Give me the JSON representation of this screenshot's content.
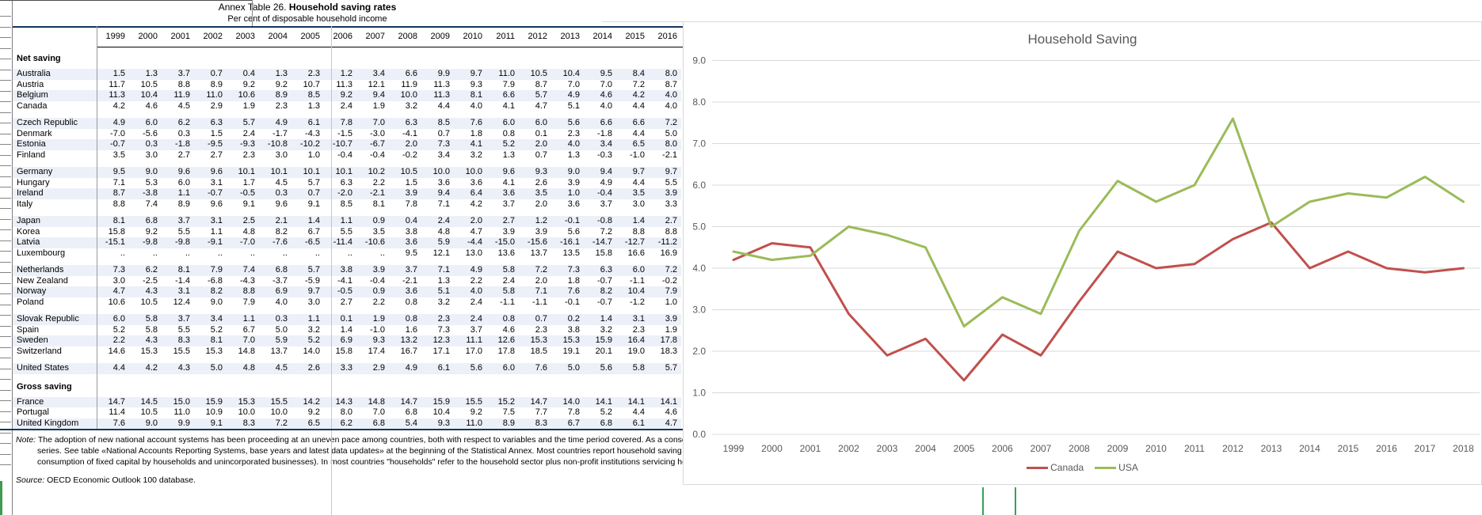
{
  "table": {
    "title_prefix": "Annex Table 26.",
    "title_bold": "Household saving rates",
    "subtitle": "Per cent of disposable household income",
    "years": [
      "1999",
      "2000",
      "2001",
      "2002",
      "2003",
      "2004",
      "2005",
      "2006",
      "2007",
      "2008",
      "2009",
      "2010",
      "2011",
      "2012",
      "2013",
      "2014",
      "2015",
      "2016"
    ],
    "sections": [
      {
        "label": "Net saving",
        "groups": [
          [
            {
              "country": "Australia",
              "values": [
                "1.5",
                "1.3",
                "3.7",
                "0.7",
                "0.4",
                "1.3",
                "2.3",
                "1.2",
                "3.4",
                "6.6",
                "9.9",
                "9.7",
                "11.0",
                "10.5",
                "10.4",
                "9.5",
                "8.4",
                "8.0"
              ]
            },
            {
              "country": "Austria",
              "values": [
                "11.7",
                "10.5",
                "8.8",
                "8.9",
                "9.2",
                "9.2",
                "10.7",
                "11.3",
                "12.1",
                "11.9",
                "11.3",
                "9.3",
                "7.9",
                "8.7",
                "7.0",
                "7.0",
                "7.2",
                "8.7"
              ]
            },
            {
              "country": "Belgium",
              "values": [
                "11.3",
                "10.4",
                "11.9",
                "11.0",
                "10.6",
                "8.9",
                "8.5",
                "9.2",
                "9.4",
                "10.0",
                "11.3",
                "8.1",
                "6.6",
                "5.7",
                "4.9",
                "4.6",
                "4.2",
                "4.0"
              ]
            },
            {
              "country": "Canada",
              "values": [
                "4.2",
                "4.6",
                "4.5",
                "2.9",
                "1.9",
                "2.3",
                "1.3",
                "2.4",
                "1.9",
                "3.2",
                "4.4",
                "4.0",
                "4.1",
                "4.7",
                "5.1",
                "4.0",
                "4.4",
                "4.0"
              ]
            }
          ],
          [
            {
              "country": "Czech Republic",
              "values": [
                "4.9",
                "6.0",
                "6.2",
                "6.3",
                "5.7",
                "4.9",
                "6.1",
                "7.8",
                "7.0",
                "6.3",
                "8.5",
                "7.6",
                "6.0",
                "6.0",
                "5.6",
                "6.6",
                "6.6",
                "7.2"
              ]
            },
            {
              "country": "Denmark",
              "values": [
                "-7.0",
                "-5.6",
                "0.3",
                "1.5",
                "2.4",
                "-1.7",
                "-4.3",
                "-1.5",
                "-3.0",
                "-4.1",
                "0.7",
                "1.8",
                "0.8",
                "0.1",
                "2.3",
                "-1.8",
                "4.4",
                "5.0"
              ]
            },
            {
              "country": "Estonia",
              "values": [
                "-0.7",
                "0.3",
                "-1.8",
                "-9.5",
                "-9.3",
                "-10.8",
                "-10.2",
                "-10.7",
                "-6.7",
                "2.0",
                "7.3",
                "4.1",
                "5.2",
                "2.0",
                "4.0",
                "3.4",
                "6.5",
                "8.0"
              ]
            },
            {
              "country": "Finland",
              "values": [
                "3.5",
                "3.0",
                "2.7",
                "2.7",
                "2.3",
                "3.0",
                "1.0",
                "-0.4",
                "-0.4",
                "-0.2",
                "3.4",
                "3.2",
                "1.3",
                "0.7",
                "1.3",
                "-0.3",
                "-1.0",
                "-2.1"
              ]
            }
          ],
          [
            {
              "country": "Germany",
              "values": [
                "9.5",
                "9.0",
                "9.6",
                "9.6",
                "10.1",
                "10.1",
                "10.1",
                "10.1",
                "10.2",
                "10.5",
                "10.0",
                "10.0",
                "9.6",
                "9.3",
                "9.0",
                "9.4",
                "9.7",
                "9.7"
              ]
            },
            {
              "country": "Hungary",
              "values": [
                "7.1",
                "5.3",
                "6.0",
                "3.1",
                "1.7",
                "4.5",
                "5.7",
                "6.3",
                "2.2",
                "1.5",
                "3.6",
                "3.6",
                "4.1",
                "2.6",
                "3.9",
                "4.9",
                "4.4",
                "5.5"
              ]
            },
            {
              "country": "Ireland",
              "values": [
                "8.7",
                "-3.8",
                "1.1",
                "-0.7",
                "-0.5",
                "0.3",
                "0.7",
                "-2.0",
                "-2.1",
                "3.9",
                "9.4",
                "6.4",
                "3.6",
                "3.5",
                "1.0",
                "-0.4",
                "3.5",
                "3.9"
              ]
            },
            {
              "country": "Italy",
              "values": [
                "8.8",
                "7.4",
                "8.9",
                "9.6",
                "9.1",
                "9.6",
                "9.1",
                "8.5",
                "8.1",
                "7.8",
                "7.1",
                "4.2",
                "3.7",
                "2.0",
                "3.6",
                "3.7",
                "3.0",
                "3.3"
              ]
            }
          ],
          [
            {
              "country": "Japan",
              "values": [
                "8.1",
                "6.8",
                "3.7",
                "3.1",
                "2.5",
                "2.1",
                "1.4",
                "1.1",
                "0.9",
                "0.4",
                "2.4",
                "2.0",
                "2.7",
                "1.2",
                "-0.1",
                "-0.8",
                "1.4",
                "2.7"
              ]
            },
            {
              "country": "Korea",
              "values": [
                "15.8",
                "9.2",
                "5.5",
                "1.1",
                "4.8",
                "8.2",
                "6.7",
                "5.5",
                "3.5",
                "3.8",
                "4.8",
                "4.7",
                "3.9",
                "3.9",
                "5.6",
                "7.2",
                "8.8",
                "8.8"
              ]
            },
            {
              "country": "Latvia",
              "values": [
                "-15.1",
                "-9.8",
                "-9.8",
                "-9.1",
                "-7.0",
                "-7.6",
                "-6.5",
                "-11.4",
                "-10.6",
                "3.6",
                "5.9",
                "-4.4",
                "-15.0",
                "-15.6",
                "-16.1",
                "-14.7",
                "-12.7",
                "-11.2"
              ]
            },
            {
              "country": "Luxembourg",
              "values": [
                "..",
                "..",
                "..",
                "..",
                "..",
                "..",
                "..",
                "..",
                "..",
                "9.5",
                "12.1",
                "13.0",
                "13.6",
                "13.7",
                "13.5",
                "15.8",
                "16.6",
                "16.9"
              ]
            }
          ],
          [
            {
              "country": "Netherlands",
              "values": [
                "7.3",
                "6.2",
                "8.1",
                "7.9",
                "7.4",
                "6.8",
                "5.7",
                "3.8",
                "3.9",
                "3.7",
                "7.1",
                "4.9",
                "5.8",
                "7.2",
                "7.3",
                "6.3",
                "6.0",
                "7.2"
              ]
            },
            {
              "country": "New Zealand",
              "values": [
                "3.0",
                "-2.5",
                "-1.4",
                "-6.8",
                "-4.3",
                "-3.7",
                "-5.9",
                "-4.1",
                "-0.4",
                "-2.1",
                "1.3",
                "2.2",
                "2.4",
                "2.0",
                "1.8",
                "-0.7",
                "-1.1",
                "-0.2"
              ]
            },
            {
              "country": "Norway",
              "values": [
                "4.7",
                "4.3",
                "3.1",
                "8.2",
                "8.8",
                "6.9",
                "9.7",
                "-0.5",
                "0.9",
                "3.6",
                "5.1",
                "4.0",
                "5.8",
                "7.1",
                "7.6",
                "8.2",
                "10.4",
                "7.9"
              ]
            },
            {
              "country": "Poland",
              "values": [
                "10.6",
                "10.5",
                "12.4",
                "9.0",
                "7.9",
                "4.0",
                "3.0",
                "2.7",
                "2.2",
                "0.8",
                "3.2",
                "2.4",
                "-1.1",
                "-1.1",
                "-0.1",
                "-0.7",
                "-1.2",
                "1.0"
              ]
            }
          ],
          [
            {
              "country": "Slovak Republic",
              "values": [
                "6.0",
                "5.8",
                "3.7",
                "3.4",
                "1.1",
                "0.3",
                "1.1",
                "0.1",
                "1.9",
                "0.8",
                "2.3",
                "2.4",
                "0.8",
                "0.7",
                "0.2",
                "1.4",
                "3.1",
                "3.9"
              ]
            },
            {
              "country": "Spain",
              "values": [
                "5.2",
                "5.8",
                "5.5",
                "5.2",
                "6.7",
                "5.0",
                "3.2",
                "1.4",
                "-1.0",
                "1.6",
                "7.3",
                "3.7",
                "4.6",
                "2.3",
                "3.8",
                "3.2",
                "2.3",
                "1.9"
              ]
            },
            {
              "country": "Sweden",
              "values": [
                "2.2",
                "4.3",
                "8.3",
                "8.1",
                "7.0",
                "5.9",
                "5.2",
                "6.9",
                "9.3",
                "13.2",
                "12.3",
                "11.1",
                "12.6",
                "15.3",
                "15.3",
                "15.9",
                "16.4",
                "17.8"
              ]
            },
            {
              "country": "Switzerland",
              "values": [
                "14.6",
                "15.3",
                "15.5",
                "15.3",
                "14.8",
                "13.7",
                "14.0",
                "15.8",
                "17.4",
                "16.7",
                "17.1",
                "17.0",
                "17.8",
                "18.5",
                "19.1",
                "20.1",
                "19.0",
                "18.3"
              ]
            }
          ],
          [
            {
              "country": "United States",
              "values": [
                "4.4",
                "4.2",
                "4.3",
                "5.0",
                "4.8",
                "4.5",
                "2.6",
                "3.3",
                "2.9",
                "4.9",
                "6.1",
                "5.6",
                "6.0",
                "7.6",
                "5.0",
                "5.6",
                "5.8",
                "5.7"
              ]
            }
          ]
        ]
      },
      {
        "label": "Gross saving",
        "groups": [
          [
            {
              "country": "France",
              "values": [
                "14.7",
                "14.5",
                "15.0",
                "15.9",
                "15.3",
                "15.5",
                "14.2",
                "14.3",
                "14.8",
                "14.7",
                "15.9",
                "15.5",
                "15.2",
                "14.7",
                "14.0",
                "14.1",
                "14.1",
                "14.1"
              ]
            },
            {
              "country": "Portugal",
              "values": [
                "11.4",
                "10.5",
                "11.0",
                "10.9",
                "10.0",
                "10.0",
                "9.2",
                "8.0",
                "7.0",
                "6.8",
                "10.4",
                "9.2",
                "7.5",
                "7.7",
                "7.8",
                "5.2",
                "4.4",
                "4.6"
              ]
            },
            {
              "country": "United Kingdom",
              "values": [
                "7.6",
                "9.0",
                "9.9",
                "9.1",
                "8.3",
                "7.2",
                "6.5",
                "6.2",
                "6.8",
                "5.4",
                "9.3",
                "11.0",
                "8.9",
                "8.3",
                "6.7",
                "6.8",
                "6.1",
                "4.7"
              ]
            }
          ]
        ]
      }
    ],
    "note_label": "Note:",
    "note_lines": [
      "The adoption of new national account systems has been proceeding at an uneven pace among countries, both with respect to variables and the time period covered. As a consequence, there are brea",
      "series. See table «National Accounts Reporting Systems, base years and latest data updates» at the beginning of the Statistical Annex. Most countries report household saving on a net basis (i.e. excluding",
      "consumption of fixed capital by households and unincorporated businesses). In most countries \"households\" refer to the household sector plus non-profit institutions servicing households (in some c"
    ],
    "source_label": "Source:",
    "source_text": "OECD Economic Outlook 100 database."
  },
  "chart_data": {
    "type": "line",
    "title": "Household Saving",
    "x": [
      1999,
      2000,
      2001,
      2002,
      2003,
      2004,
      2005,
      2006,
      2007,
      2008,
      2009,
      2010,
      2011,
      2012,
      2013,
      2014,
      2015,
      2016,
      2017,
      2018
    ],
    "series": [
      {
        "name": "Canada",
        "color": "#C0504D",
        "values": [
          4.2,
          4.6,
          4.5,
          2.9,
          1.9,
          2.3,
          1.3,
          2.4,
          1.9,
          3.2,
          4.4,
          4.0,
          4.1,
          4.7,
          5.1,
          4.0,
          4.4,
          4.0,
          3.9,
          4.0
        ]
      },
      {
        "name": "USA",
        "color": "#9BBB59",
        "values": [
          4.4,
          4.2,
          4.3,
          5.0,
          4.8,
          4.5,
          2.6,
          3.3,
          2.9,
          4.9,
          6.1,
          5.6,
          6.0,
          7.6,
          5.0,
          5.6,
          5.8,
          5.7,
          6.2,
          5.6
        ]
      }
    ],
    "ylim": [
      0.0,
      9.0
    ],
    "ytick_step": 1.0,
    "ytick_labels": [
      "0.0",
      "1.0",
      "2.0",
      "3.0",
      "4.0",
      "5.0",
      "6.0",
      "7.0",
      "8.0",
      "9.0"
    ],
    "grid": true,
    "legend_position": "bottom",
    "colors": {
      "grid": "#D9D9D9",
      "axis_text": "#595959",
      "title_text": "#595959"
    }
  },
  "decor": {
    "navy_line": "#17375E",
    "row_shade": "#ECF0F8",
    "green_artifact": "#3E9B50"
  }
}
